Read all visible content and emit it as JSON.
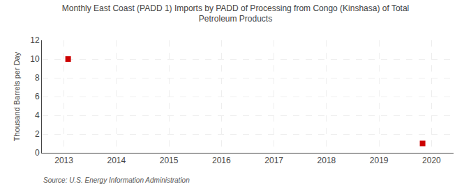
{
  "chart_data": {
    "type": "scatter",
    "title": "Monthly East Coast (PADD 1) Imports by PADD of Processing from Congo (Kinshasa) of Total\nPetroleum Products",
    "ylabel": "Thousand Barrels per Day",
    "annotations": [
      "Source: U.S. Energy Information Administration"
    ],
    "x": [
      2013.08,
      2019.83
    ],
    "values": [
      10.0,
      1.0
    ],
    "color": "#cc0000",
    "marker": "square",
    "xlim": [
      2012.58,
      2020.42
    ],
    "ylim": [
      0,
      12
    ],
    "xticks": [
      2013,
      2014,
      2015,
      2016,
      2017,
      2018,
      2019,
      2020
    ],
    "yticks": [
      0,
      2,
      4,
      6,
      8,
      10,
      12
    ],
    "grid": true
  }
}
